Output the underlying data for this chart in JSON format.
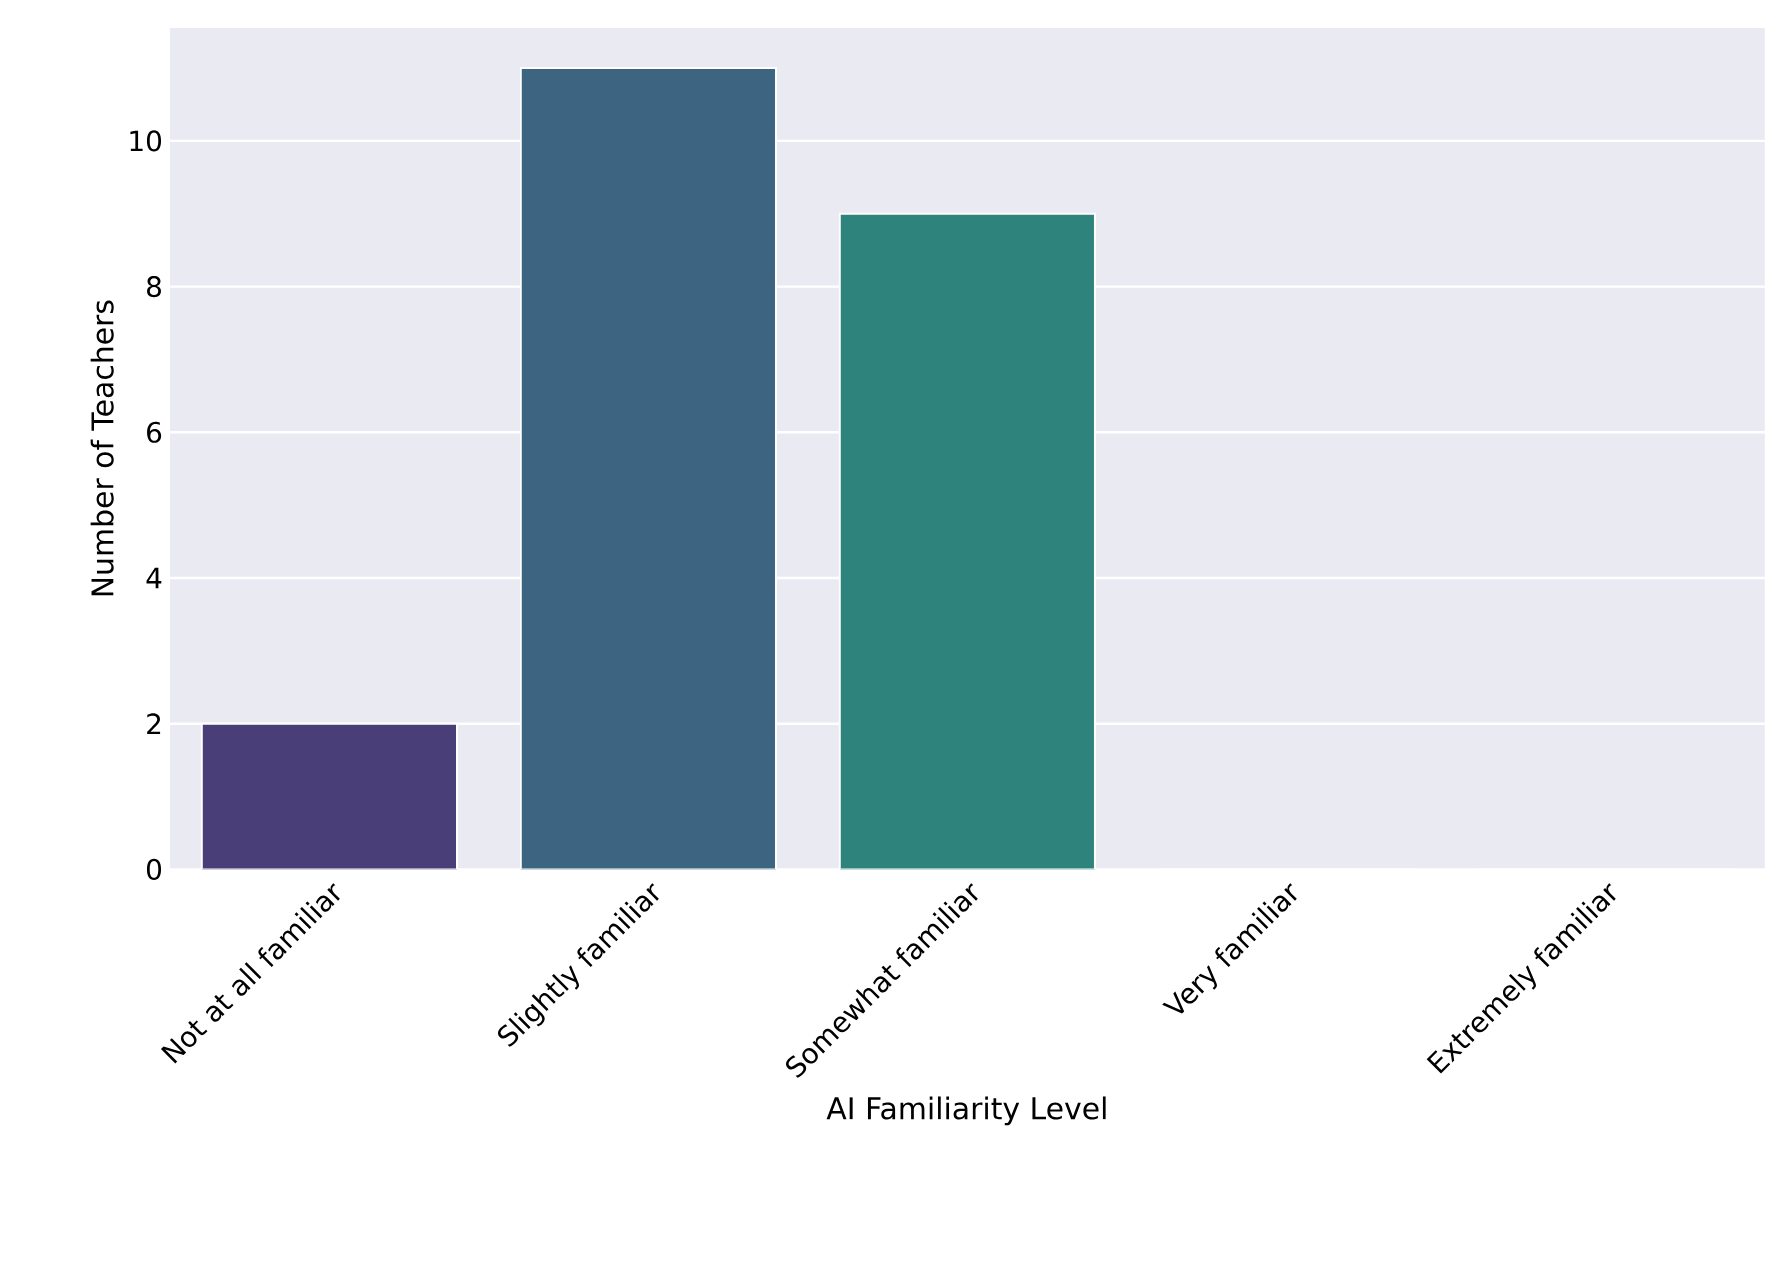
{
  "chart_data": {
    "type": "bar",
    "categories": [
      "Not at all familiar",
      "Slightly familiar",
      "Somewhat familiar",
      "Very familiar",
      "Extremely familiar"
    ],
    "values": [
      2,
      11,
      9,
      0,
      0
    ],
    "colors": [
      "#4a3e78",
      "#3d6480",
      "#2e837c",
      "#2e837c",
      "#2e837c"
    ],
    "xlabel": "AI Familiarity Level",
    "ylabel": "Number of Teachers",
    "ylim": [
      0,
      11.55
    ],
    "yticks": [
      0,
      2,
      4,
      6,
      8,
      10
    ],
    "grid": "y"
  }
}
